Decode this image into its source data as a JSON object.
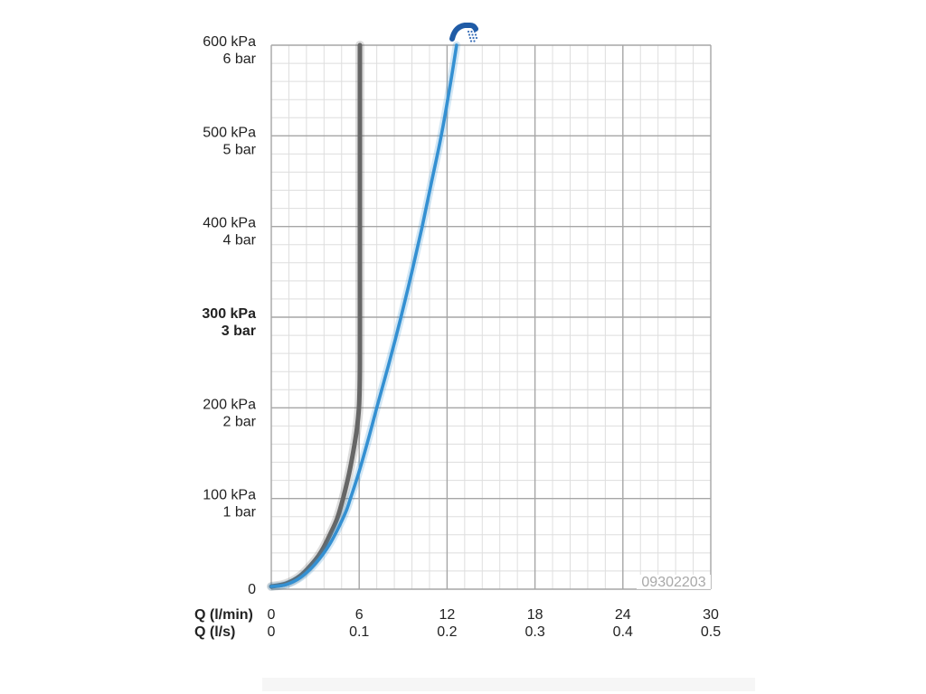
{
  "chart_data": {
    "type": "line",
    "title": "",
    "xlabel": "Q (l/min)",
    "xlabel_secondary": "Q (l/s)",
    "ylabel": "",
    "xlim": [
      0,
      30
    ],
    "ylim": [
      0,
      600
    ],
    "x_ticks": [
      0,
      6,
      12,
      18,
      24,
      30
    ],
    "x_tick_labels": [
      "0",
      "6",
      "12",
      "18",
      "24",
      "30"
    ],
    "x_tick_labels_secondary": [
      "0",
      "0.1",
      "0.2",
      "0.3",
      "0.4",
      "0.5"
    ],
    "y_tick_labels": [
      {
        "value": 0,
        "lines": [
          "0"
        ]
      },
      {
        "value": 100,
        "lines": [
          "100 kPa",
          "1 bar"
        ]
      },
      {
        "value": 200,
        "lines": [
          "200 kPa",
          "2 bar"
        ]
      },
      {
        "value": 300,
        "lines": [
          "300 kPa",
          "3 bar"
        ]
      },
      {
        "value": 400,
        "lines": [
          "400 kPa",
          "4 bar"
        ]
      },
      {
        "value": 500,
        "lines": [
          "500 kPa",
          "5 bar"
        ]
      },
      {
        "value": 600,
        "lines": [
          "600 kPa",
          "6 bar"
        ]
      }
    ],
    "bold_y_tick": 300,
    "grid": true,
    "series": [
      {
        "color": "#666666",
        "points": [
          [
            0,
            3
          ],
          [
            1,
            6
          ],
          [
            2,
            15
          ],
          [
            3,
            32
          ],
          [
            3.5,
            44
          ],
          [
            4,
            60
          ],
          [
            4.5,
            78
          ],
          [
            4.9,
            100
          ],
          [
            5.3,
            127
          ],
          [
            5.6,
            152
          ],
          [
            5.85,
            178
          ],
          [
            6.0,
            205
          ],
          [
            6.05,
            250
          ],
          [
            6.05,
            350
          ],
          [
            6.05,
            450
          ],
          [
            6.05,
            600
          ]
        ]
      },
      {
        "color": "#3490d2",
        "icon": "hand-shower-icon",
        "points": [
          [
            0,
            3
          ],
          [
            1,
            5
          ],
          [
            2,
            13
          ],
          [
            3,
            28
          ],
          [
            4,
            50
          ],
          [
            5,
            82
          ],
          [
            5.4,
            100
          ],
          [
            6.0,
            130
          ],
          [
            6.6,
            164
          ],
          [
            7.2,
            200
          ],
          [
            8.0,
            247
          ],
          [
            8.85,
            300
          ],
          [
            9.6,
            350
          ],
          [
            10.3,
            400
          ],
          [
            10.95,
            450
          ],
          [
            11.6,
            500
          ],
          [
            12.15,
            550
          ],
          [
            12.65,
            600
          ]
        ]
      }
    ],
    "code": "09302203"
  }
}
